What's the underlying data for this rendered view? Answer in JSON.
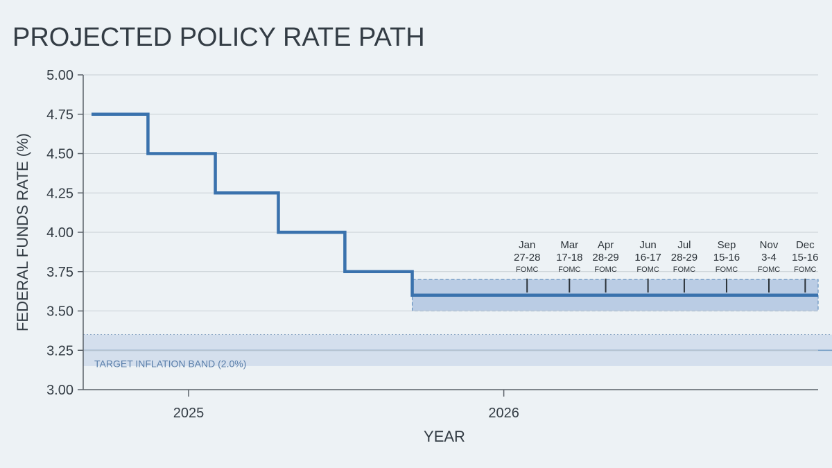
{
  "chart_data": {
    "type": "line",
    "step": true,
    "title": "PROJECTED POLICY RATE PATH",
    "xlabel": "YEAR",
    "ylabel": "FEDERAL FUNDS RATE (%)",
    "ylim": [
      3.0,
      5.0
    ],
    "yticks": [
      "3.00",
      "3.25",
      "3.50",
      "3.75",
      "4.00",
      "4.25",
      "4.50",
      "4.75",
      "5.00"
    ],
    "xlim": [
      "2024-09-01",
      "2026-12-31"
    ],
    "xticks": [
      {
        "date": "2025-01-01",
        "label": "2025"
      },
      {
        "date": "2026-01-01",
        "label": "2026"
      }
    ],
    "grid": true,
    "series": [
      {
        "color": "#3a72ad",
        "points": [
          {
            "date": "2024-09-01",
            "value": 4.75
          },
          {
            "date": "2024-11-15",
            "value": 4.5
          },
          {
            "date": "2025-02-01",
            "value": 4.25
          },
          {
            "date": "2025-04-15",
            "value": 4.0
          },
          {
            "date": "2025-07-01",
            "value": 3.75
          },
          {
            "date": "2025-09-17",
            "value": 3.6
          },
          {
            "date": "2026-12-31",
            "value": 3.6
          }
        ]
      }
    ],
    "projection_band": {
      "x_start": "2025-09-17",
      "x_end": "2026-12-31",
      "y_min": 3.5,
      "y_max": 3.7,
      "color": "#a9c0df"
    },
    "target_band": {
      "label": "TARGET INFLATION BAND (2.0%)",
      "y_min": 3.15,
      "y_max": 3.35,
      "center": 3.25,
      "color": "#cfdceb",
      "line_color": "#7ea3c8"
    },
    "meetings": [
      {
        "month": "Jan",
        "days": "27-28",
        "tag": "FOMC",
        "date": "2026-01-28"
      },
      {
        "month": "Mar",
        "days": "17-18",
        "tag": "FOMC",
        "date": "2026-03-18"
      },
      {
        "month": "Apr",
        "days": "28-29",
        "tag": "FOMC",
        "date": "2026-04-29"
      },
      {
        "month": "Jun",
        "days": "16-17",
        "tag": "FOMC",
        "date": "2026-06-17"
      },
      {
        "month": "Jul",
        "days": "28-29",
        "tag": "FOMC",
        "date": "2026-07-29"
      },
      {
        "month": "Sep",
        "days": "15-16",
        "tag": "FOMC",
        "date": "2026-09-16"
      },
      {
        "month": "Nov",
        "days": "3-4",
        "tag": "FOMC",
        "date": "2026-11-04"
      },
      {
        "month": "Dec",
        "days": "15-16",
        "tag": "FOMC",
        "date": "2026-12-16"
      }
    ]
  }
}
